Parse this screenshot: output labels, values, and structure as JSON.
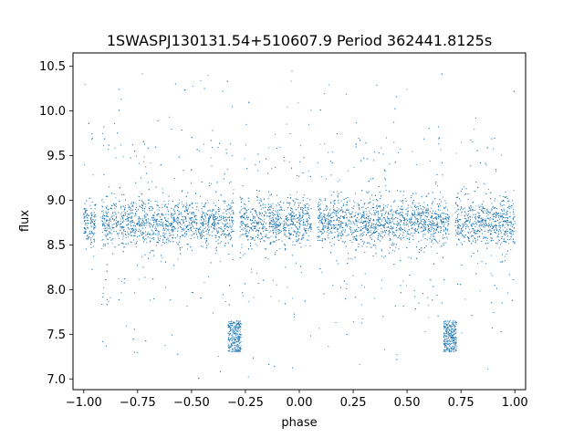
{
  "chart_data": {
    "type": "scatter",
    "title": "1SWASPJ130131.54+510607.9 Period 362441.8125s",
    "xlabel": "phase",
    "ylabel": "flux",
    "xlim": [
      -1.05,
      1.05
    ],
    "ylim": [
      6.88,
      10.65
    ],
    "x_ticks": [
      -1.0,
      -0.75,
      -0.5,
      -0.25,
      0.0,
      0.25,
      0.5,
      0.75,
      1.0
    ],
    "x_tick_labels": [
      "−1.00",
      "−0.75",
      "−0.50",
      "−0.25",
      "0.00",
      "0.25",
      "0.50",
      "0.75",
      "1.00"
    ],
    "y_ticks": [
      7.0,
      7.5,
      8.0,
      8.5,
      9.0,
      9.5,
      10.0,
      10.5
    ],
    "y_tick_labels": [
      "7.0",
      "7.5",
      "8.0",
      "8.5",
      "9.0",
      "9.5",
      "10.0",
      "10.5"
    ],
    "grid": false,
    "color": "#1f77b4",
    "series": [
      {
        "marker": "point",
        "pattern": "phase-folded light curve, data mirrored at phase ±1",
        "baseline_flux": 8.75,
        "baseline_band": [
          8.45,
          9.05
        ],
        "scatter_range": [
          7.0,
          10.45
        ],
        "phase_gaps": [
          -0.93,
          -0.29,
          0.07,
          0.71
        ],
        "eclipse": {
          "phases": [
            -0.3,
            0.7
          ],
          "flux_range": [
            7.3,
            7.65
          ]
        },
        "points": [
          [
            -0.98,
            8.74
          ],
          [
            -0.92,
            8.81
          ],
          [
            -0.86,
            8.69
          ],
          [
            -0.8,
            8.77
          ],
          [
            -0.74,
            8.72
          ],
          [
            -0.68,
            8.83
          ],
          [
            -0.62,
            8.7
          ],
          [
            -0.56,
            8.78
          ],
          [
            -0.5,
            8.75
          ],
          [
            -0.44,
            8.68
          ],
          [
            -0.38,
            8.8
          ],
          [
            -0.3,
            7.45
          ],
          [
            -0.26,
            8.76
          ],
          [
            -0.2,
            8.71
          ],
          [
            -0.14,
            8.82
          ],
          [
            -0.08,
            8.74
          ],
          [
            -0.02,
            8.79
          ],
          [
            0.04,
            8.73
          ],
          [
            0.1,
            8.77
          ],
          [
            0.16,
            8.7
          ],
          [
            0.22,
            8.81
          ],
          [
            0.28,
            8.75
          ],
          [
            0.34,
            8.69
          ],
          [
            0.4,
            8.78
          ],
          [
            0.46,
            8.74
          ],
          [
            0.52,
            8.8
          ],
          [
            0.58,
            8.71
          ],
          [
            0.64,
            8.76
          ],
          [
            0.7,
            7.42
          ],
          [
            0.76,
            8.73
          ],
          [
            0.82,
            8.79
          ],
          [
            0.88,
            8.7
          ],
          [
            0.94,
            8.77
          ],
          [
            1.0,
            8.74
          ]
        ]
      }
    ]
  }
}
